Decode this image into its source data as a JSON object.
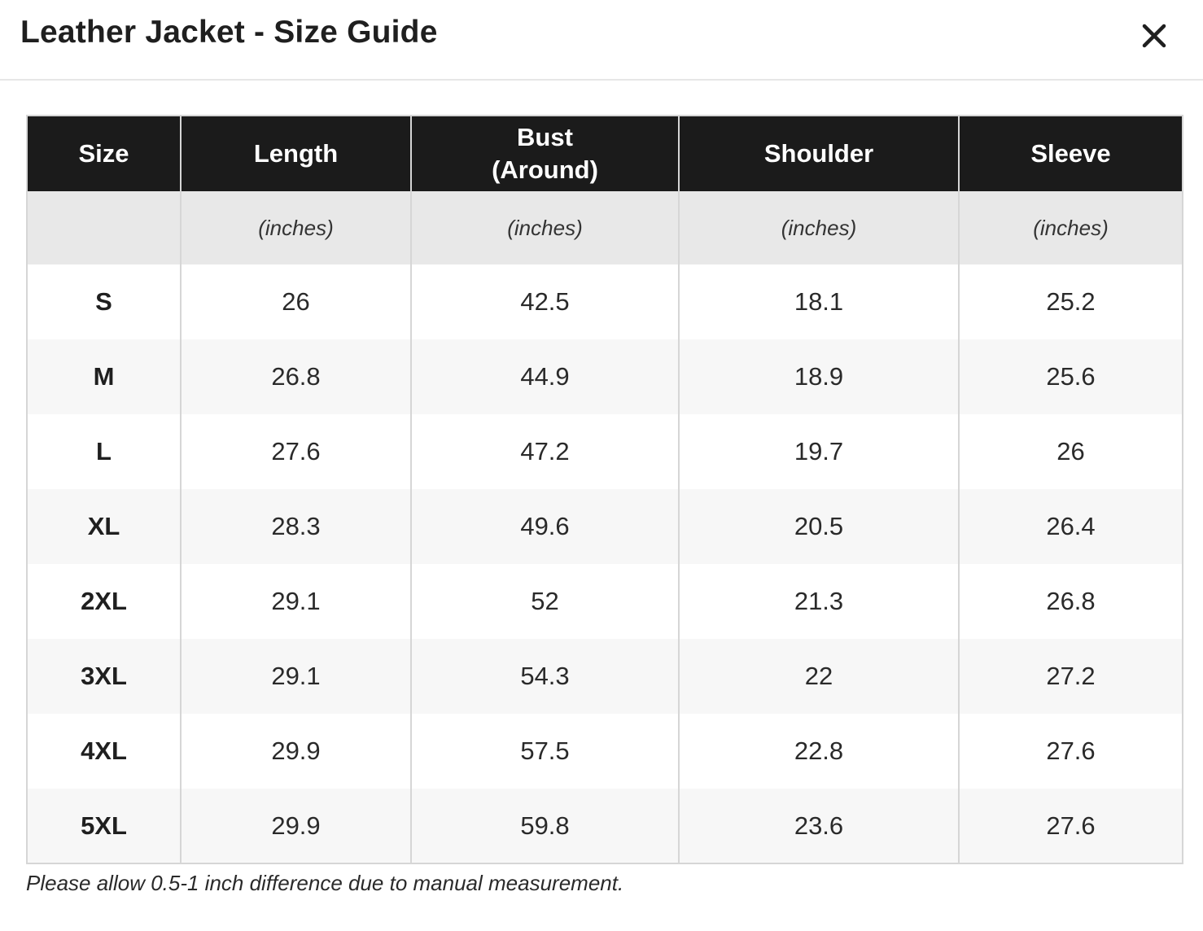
{
  "modal": {
    "title": "Leather Jacket - Size Guide",
    "close_icon": "close-icon"
  },
  "table": {
    "headers": [
      {
        "line1": "Size",
        "line2": ""
      },
      {
        "line1": "Length",
        "line2": ""
      },
      {
        "line1": "Bust",
        "line2": "(Around)"
      },
      {
        "line1": "Shoulder",
        "line2": ""
      },
      {
        "line1": "Sleeve",
        "line2": ""
      }
    ],
    "units": [
      "",
      "(inches)",
      "(inches)",
      "(inches)",
      "(inches)"
    ],
    "rows": [
      [
        "S",
        "26",
        "42.5",
        "18.1",
        "25.2"
      ],
      [
        "M",
        "26.8",
        "44.9",
        "18.9",
        "25.6"
      ],
      [
        "L",
        "27.6",
        "47.2",
        "19.7",
        "26"
      ],
      [
        "XL",
        "28.3",
        "49.6",
        "20.5",
        "26.4"
      ],
      [
        "2XL",
        "29.1",
        "52",
        "21.3",
        "26.8"
      ],
      [
        "3XL",
        "29.1",
        "54.3",
        "22",
        "27.2"
      ],
      [
        "4XL",
        "29.9",
        "57.5",
        "22.8",
        "27.6"
      ],
      [
        "5XL",
        "29.9",
        "59.8",
        "23.6",
        "27.6"
      ]
    ]
  },
  "footer": {
    "note": "Please allow 0.5-1 inch difference due to manual measurement."
  }
}
